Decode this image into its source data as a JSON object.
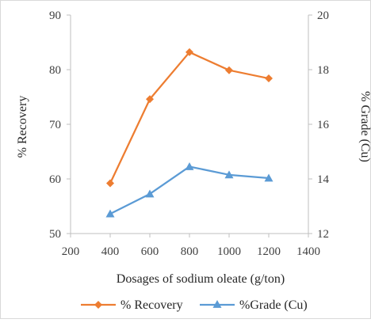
{
  "chart_data": {
    "type": "line",
    "xlabel": "Dosages of sodium oleate (g/ton)",
    "ylabel_left": "% Recovery",
    "ylabel_right": "% Grade (Cu)",
    "xlim": [
      200,
      1400
    ],
    "x_ticks": [
      200,
      400,
      600,
      800,
      1000,
      1200,
      1400
    ],
    "ylim_left": [
      50,
      90
    ],
    "y_ticks_left": [
      50,
      60,
      70,
      80,
      90
    ],
    "ylim_right": [
      12,
      20
    ],
    "y_ticks_right": [
      12,
      14,
      16,
      18,
      20
    ],
    "grid": false,
    "legend_position": "bottom",
    "series": [
      {
        "name": "% Recovery",
        "axis": "left",
        "marker": "diamond",
        "color": "#ED7D31",
        "x": [
          400,
          600,
          800,
          1000,
          1200
        ],
        "y": [
          59.2,
          74.6,
          83.2,
          79.9,
          78.4
        ]
      },
      {
        "name": "%Grade (Cu)",
        "axis": "right",
        "marker": "triangle",
        "color": "#5B9BD5",
        "x": [
          400,
          600,
          800,
          1000,
          1200
        ],
        "y": [
          12.72,
          13.45,
          14.45,
          14.15,
          14.03
        ]
      }
    ]
  }
}
